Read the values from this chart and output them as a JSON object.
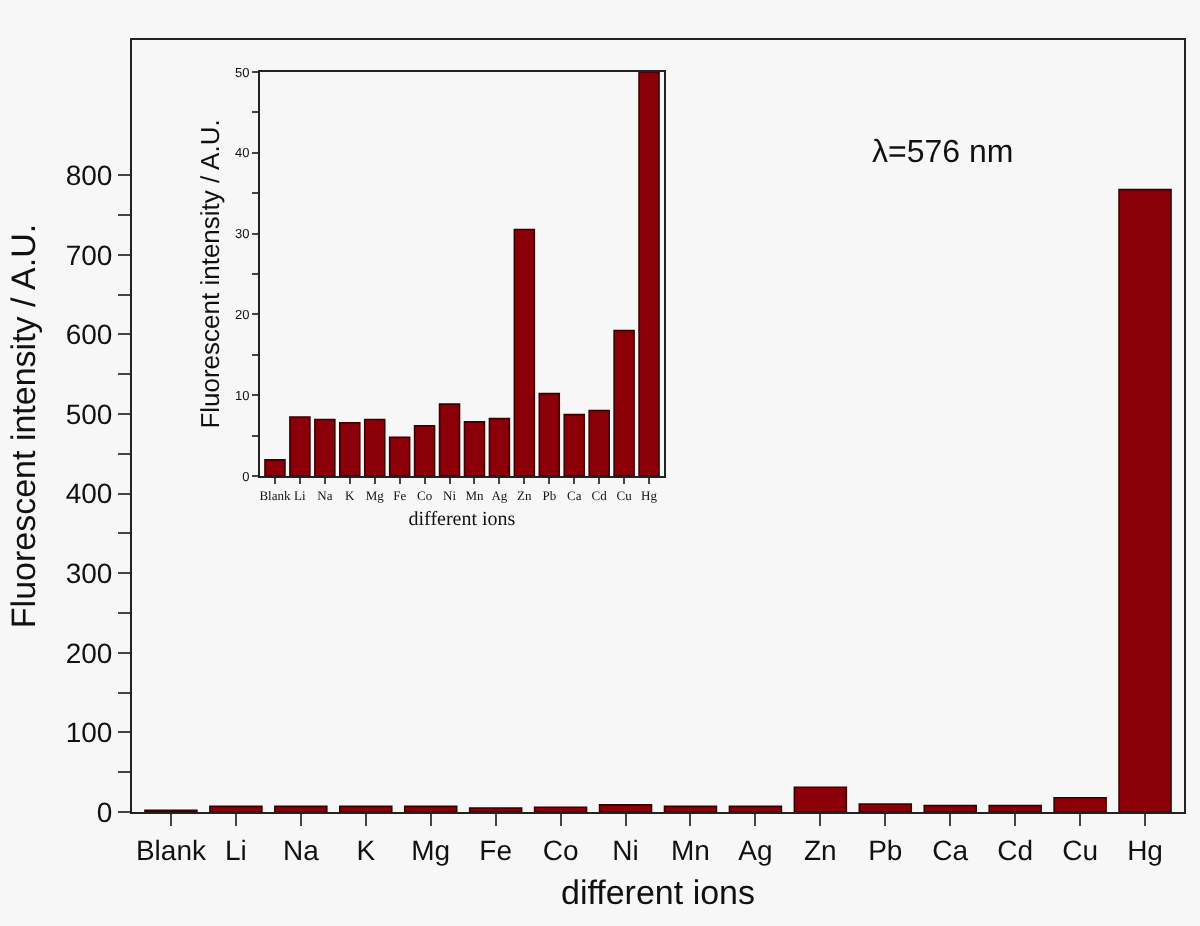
{
  "chart_data": [
    {
      "type": "bar",
      "xlabel": "different ions",
      "ylabel": "Fluorescent intensity / A.U.",
      "categories": [
        "Blank",
        "Li",
        "Na",
        "K",
        "Mg",
        "Fe",
        "Co",
        "Ni",
        "Mn",
        "Ag",
        "Zn",
        "Pb",
        "Ca",
        "Cd",
        "Cu",
        "Hg"
      ],
      "series": [
        {
          "color": "#8b0008",
          "values": [
            2,
            7,
            7,
            7,
            7,
            5,
            6,
            9,
            7,
            7,
            31,
            10,
            8,
            8,
            18,
            782
          ]
        }
      ],
      "ylim": [
        0,
        970
      ],
      "yticks": [
        0,
        {
          "value": 50,
          "label": null
        },
        100,
        {
          "value": 150,
          "label": null
        },
        200,
        {
          "value": 250,
          "label": null
        },
        300,
        {
          "value": 350,
          "label": null
        },
        400,
        {
          "value": 450,
          "label": null
        },
        500,
        {
          "value": 550,
          "label": null
        },
        600,
        {
          "value": 650,
          "label": null
        },
        700,
        {
          "value": 750,
          "label": null
        },
        800
      ],
      "annotations": [
        "λ=576 nm"
      ],
      "grid": false
    },
    {
      "type": "bar",
      "xlabel": "different ions",
      "ylabel": "Fluorescent intensity / A.U.",
      "categories": [
        "Blank",
        "Li",
        "Na",
        "K",
        "Mg",
        "Fe",
        "Co",
        "Ni",
        "Mn",
        "Ag",
        "Zn",
        "Pb",
        "Ca",
        "Cd",
        "Cu",
        "Hg"
      ],
      "series": [
        {
          "color": "#8b0008",
          "values": [
            2,
            7.3,
            7,
            6.6,
            7,
            4.8,
            6.2,
            8.9,
            6.7,
            7.1,
            30.5,
            10.2,
            7.6,
            8.1,
            18,
            50
          ]
        }
      ],
      "ylim": [
        0,
        50
      ],
      "yticks": [
        0,
        {
          "value": 5,
          "label": null
        },
        10,
        {
          "value": 15,
          "label": null
        },
        20,
        {
          "value": 25,
          "label": null
        },
        30,
        {
          "value": 35,
          "label": null
        },
        40,
        {
          "value": 45,
          "label": null
        },
        50
      ],
      "grid": false
    }
  ]
}
